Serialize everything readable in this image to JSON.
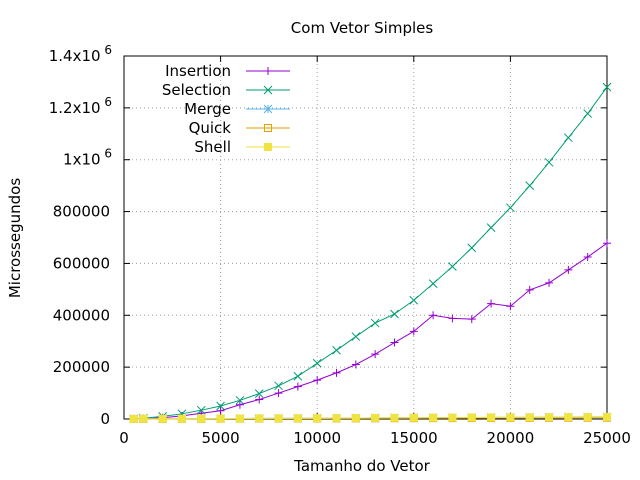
{
  "chart_data": {
    "type": "line",
    "title": "Com Vetor Simples",
    "xlabel": "Tamanho do Vetor",
    "ylabel": "Microssegundos",
    "xlim": [
      0,
      25000
    ],
    "ylim": [
      0,
      1400000
    ],
    "grid": true,
    "legend_position": "top-left",
    "x_ticks": [
      {
        "value": 0,
        "label": "0"
      },
      {
        "value": 5000,
        "label": "5000"
      },
      {
        "value": 10000,
        "label": "10000"
      },
      {
        "value": 15000,
        "label": "15000"
      },
      {
        "value": 20000,
        "label": "20000"
      },
      {
        "value": 25000,
        "label": "25000"
      }
    ],
    "y_ticks": [
      {
        "value": 0,
        "label": "0",
        "exp": ""
      },
      {
        "value": 200000,
        "label": "200000",
        "exp": ""
      },
      {
        "value": 400000,
        "label": "400000",
        "exp": ""
      },
      {
        "value": 600000,
        "label": "600000",
        "exp": ""
      },
      {
        "value": 800000,
        "label": "800000",
        "exp": ""
      },
      {
        "value": 1000000,
        "label": "1x10",
        "exp": "6"
      },
      {
        "value": 1200000,
        "label": "1.2x10",
        "exp": "6"
      },
      {
        "value": 1400000,
        "label": "1.4x10",
        "exp": "6"
      }
    ],
    "x": [
      500,
      1000,
      2000,
      3000,
      4000,
      5000,
      6000,
      7000,
      8000,
      9000,
      10000,
      11000,
      12000,
      13000,
      14000,
      15000,
      16000,
      17000,
      18000,
      19000,
      20000,
      21000,
      22000,
      23000,
      24000,
      25000
    ],
    "series": [
      {
        "name": "Insertion",
        "color": "#9400d3",
        "marker": "plus",
        "values": [
          500,
          1500,
          5000,
          12000,
          22000,
          32000,
          55000,
          75000,
          100000,
          125000,
          150000,
          178000,
          210000,
          250000,
          295000,
          338000,
          400000,
          388000,
          385000,
          445000,
          435000,
          498000,
          525000,
          575000,
          625000,
          678000
        ]
      },
      {
        "name": "Selection",
        "color": "#009e73",
        "marker": "cross",
        "values": [
          700,
          3000,
          10000,
          20000,
          34000,
          50000,
          72000,
          98000,
          128000,
          165000,
          215000,
          265000,
          318000,
          370000,
          405000,
          458000,
          522000,
          588000,
          660000,
          738000,
          815000,
          900000,
          990000,
          1085000,
          1178000,
          1280000
        ]
      },
      {
        "name": "Merge",
        "color": "#56b4e9",
        "marker": "star",
        "values": [
          300,
          400,
          700,
          1000,
          1300,
          1700,
          2000,
          2300,
          2700,
          3000,
          3300,
          3600,
          4000,
          4300,
          4600,
          5000,
          5300,
          5600,
          6000,
          6300,
          6600,
          7000,
          7300,
          7600,
          8000,
          8300
        ]
      },
      {
        "name": "Quick",
        "color": "#e69f00",
        "marker": "box",
        "values": [
          200,
          300,
          500,
          700,
          900,
          1100,
          1300,
          1500,
          1700,
          1900,
          2100,
          2300,
          2500,
          2700,
          2900,
          3100,
          3300,
          3500,
          3700,
          3900,
          4100,
          4300,
          4500,
          4700,
          4900,
          5100
        ]
      },
      {
        "name": "Shell",
        "color": "#f0e442",
        "marker": "filled-box",
        "values": [
          300,
          500,
          800,
          1100,
          1400,
          1700,
          2000,
          2300,
          2600,
          2900,
          3200,
          3500,
          3800,
          4100,
          4400,
          4700,
          5000,
          5300,
          5600,
          5900,
          6200,
          6500,
          6800,
          7100,
          7400,
          7700
        ]
      }
    ]
  }
}
